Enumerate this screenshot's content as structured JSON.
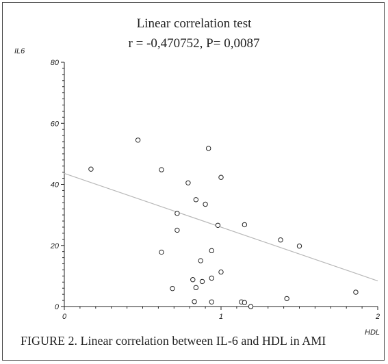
{
  "chart_data": {
    "type": "scatter",
    "title": "Linear correlation test",
    "subtitle": "r = -0,470752,  P= 0,0087",
    "xlabel": "HDL",
    "ylabel": "IL6",
    "xlim": [
      0,
      2
    ],
    "ylim": [
      0,
      80
    ],
    "x_ticks": [
      "0",
      "1",
      "2"
    ],
    "y_ticks": [
      "0",
      "20",
      "40",
      "60",
      "80"
    ],
    "grid": false,
    "trendline": {
      "slope": -17.6,
      "intercept": 43.6,
      "color": "#b8b8b8"
    },
    "points": [
      {
        "x": 0.17,
        "y": 45.0
      },
      {
        "x": 0.47,
        "y": 54.5
      },
      {
        "x": 0.62,
        "y": 44.8
      },
      {
        "x": 0.62,
        "y": 17.8
      },
      {
        "x": 0.69,
        "y": 5.9
      },
      {
        "x": 0.72,
        "y": 30.5
      },
      {
        "x": 0.72,
        "y": 25.0
      },
      {
        "x": 0.79,
        "y": 40.5
      },
      {
        "x": 0.82,
        "y": 8.8
      },
      {
        "x": 0.83,
        "y": 1.6
      },
      {
        "x": 0.84,
        "y": 35.0
      },
      {
        "x": 0.84,
        "y": 6.2
      },
      {
        "x": 0.87,
        "y": 15.0
      },
      {
        "x": 0.88,
        "y": 8.2
      },
      {
        "x": 0.9,
        "y": 33.5
      },
      {
        "x": 0.92,
        "y": 51.8
      },
      {
        "x": 0.94,
        "y": 18.3
      },
      {
        "x": 0.94,
        "y": 9.3
      },
      {
        "x": 0.94,
        "y": 1.5
      },
      {
        "x": 0.98,
        "y": 26.6
      },
      {
        "x": 1.0,
        "y": 42.3
      },
      {
        "x": 1.0,
        "y": 11.3
      },
      {
        "x": 1.13,
        "y": 1.5
      },
      {
        "x": 1.15,
        "y": 26.8
      },
      {
        "x": 1.15,
        "y": 1.3
      },
      {
        "x": 1.19,
        "y": 0.0
      },
      {
        "x": 1.38,
        "y": 21.8
      },
      {
        "x": 1.42,
        "y": 2.6
      },
      {
        "x": 1.5,
        "y": 19.8
      },
      {
        "x": 1.86,
        "y": 4.7
      }
    ]
  },
  "figure_caption": "FIGURE 2.  Linear correlation between IL-6 and HDL in AMI"
}
